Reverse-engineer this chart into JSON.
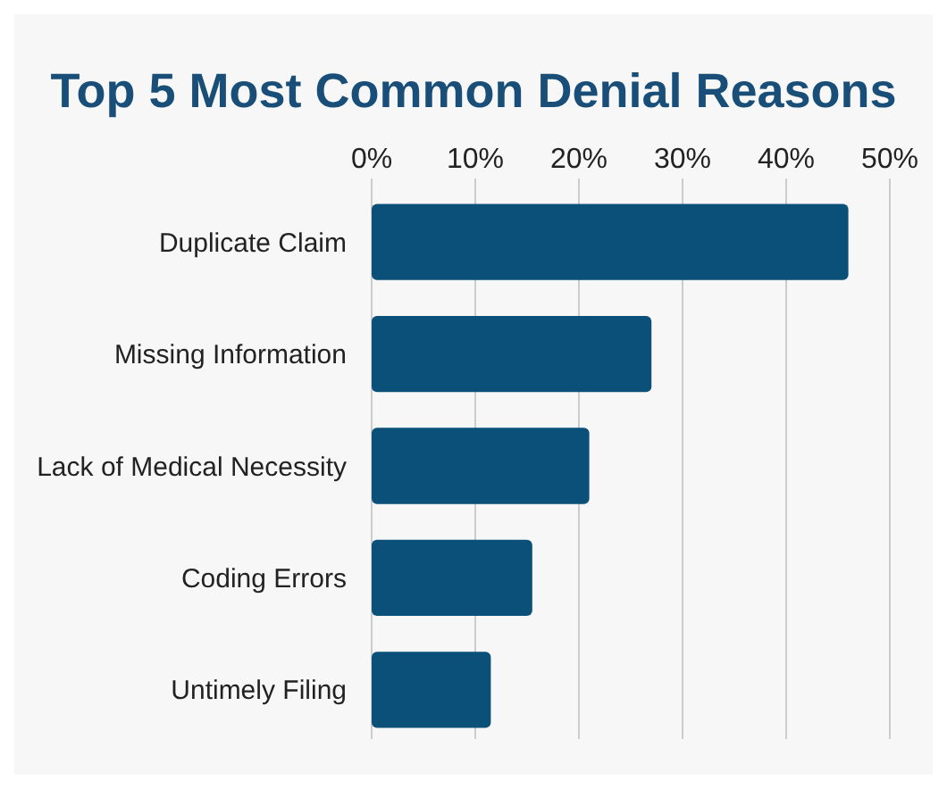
{
  "chart_data": {
    "type": "bar",
    "orientation": "horizontal",
    "title": "Top 5 Most Common Denial Reasons",
    "categories": [
      "Duplicate Claim",
      "Missing Information",
      "Lack of Medical Necessity",
      "Coding Errors",
      "Untimely Filing"
    ],
    "values": [
      46,
      27,
      21,
      15.5,
      11.5
    ],
    "color": "#0b5079",
    "xlim": [
      0,
      50
    ],
    "xticks": [
      {
        "value": 0,
        "label": "0%"
      },
      {
        "value": 10,
        "label": "10%"
      },
      {
        "value": 20,
        "label": "20%"
      },
      {
        "value": 30,
        "label": "30%"
      },
      {
        "value": 40,
        "label": "40%"
      },
      {
        "value": 50,
        "label": "50%"
      }
    ],
    "grid": "x"
  }
}
